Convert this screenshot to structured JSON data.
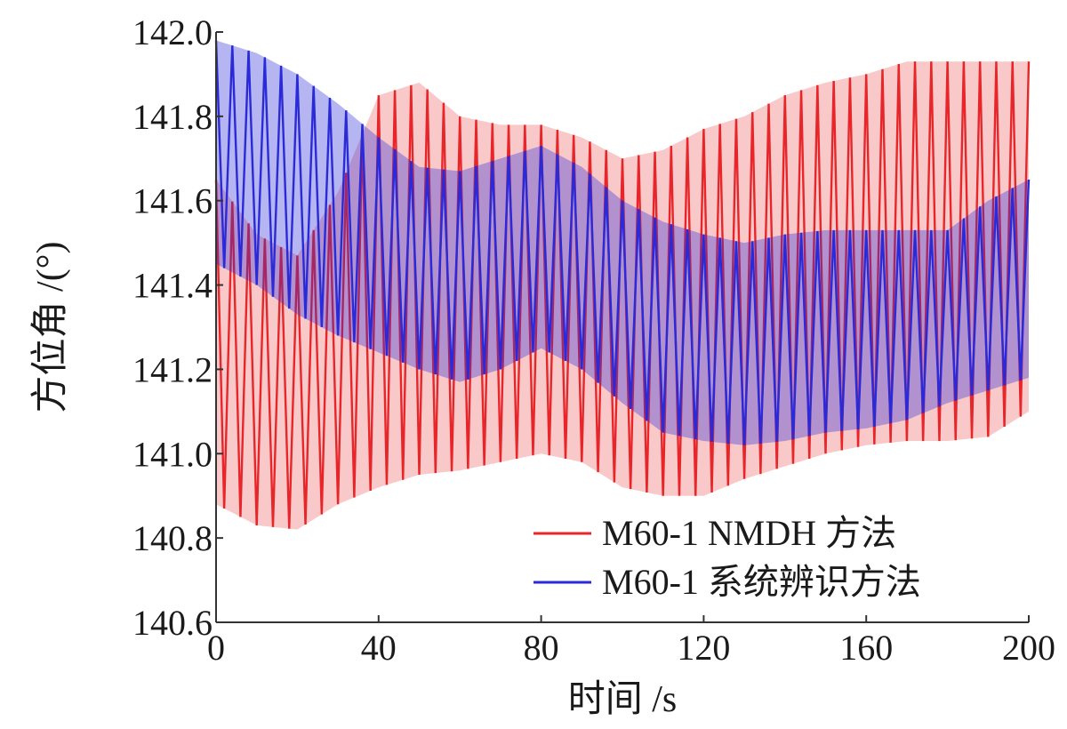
{
  "chart_data": {
    "type": "line",
    "xlabel": "时间 /s",
    "ylabel": "方位角 /(°)",
    "xlim": [
      0,
      200
    ],
    "ylim": [
      140.6,
      142.0
    ],
    "x_ticks": [
      "0",
      "40",
      "80",
      "120",
      "160",
      "200"
    ],
    "y_ticks": [
      "140.6",
      "140.8",
      "141.0",
      "141.2",
      "141.4",
      "141.6",
      "141.8",
      "142.0"
    ],
    "grid": false,
    "legend_position": "bottom-right",
    "oscillation_period_s": 4,
    "series": [
      {
        "name": "M60-1 NMDH 方法",
        "color": "#e8262a",
        "x": [
          0,
          10,
          20,
          30,
          40,
          50,
          60,
          70,
          80,
          90,
          100,
          110,
          120,
          130,
          140,
          150,
          160,
          170,
          180,
          190,
          200
        ],
        "upper": [
          141.65,
          141.52,
          141.47,
          141.62,
          141.85,
          141.88,
          141.8,
          141.78,
          141.78,
          141.75,
          141.7,
          141.72,
          141.77,
          141.8,
          141.85,
          141.88,
          141.9,
          141.93,
          141.93,
          141.93,
          141.93
        ],
        "lower": [
          140.88,
          140.83,
          140.82,
          140.88,
          140.92,
          140.95,
          140.96,
          140.98,
          141.0,
          140.98,
          140.92,
          140.9,
          140.9,
          140.94,
          140.97,
          141.0,
          141.02,
          141.03,
          141.03,
          141.04,
          141.1
        ],
        "mean": [
          141.3,
          141.2,
          141.17,
          141.25,
          141.4,
          141.45,
          141.38,
          141.4,
          141.45,
          141.38,
          141.3,
          141.3,
          141.32,
          141.35,
          141.4,
          141.42,
          141.45,
          141.47,
          141.48,
          141.5,
          141.5
        ]
      },
      {
        "name": "M60-1 系统辨识方法",
        "color": "#2a2ad8",
        "x": [
          0,
          10,
          20,
          30,
          40,
          50,
          60,
          70,
          80,
          90,
          100,
          110,
          120,
          130,
          140,
          150,
          160,
          170,
          180,
          190,
          200
        ],
        "upper": [
          141.98,
          141.95,
          141.9,
          141.83,
          141.75,
          141.68,
          141.67,
          141.7,
          141.73,
          141.68,
          141.6,
          141.55,
          141.52,
          141.5,
          141.52,
          141.53,
          141.53,
          141.53,
          141.53,
          141.6,
          141.65
        ],
        "lower": [
          141.45,
          141.4,
          141.33,
          141.28,
          141.24,
          141.2,
          141.17,
          141.2,
          141.25,
          141.2,
          141.12,
          141.05,
          141.03,
          141.02,
          141.03,
          141.05,
          141.06,
          141.08,
          141.12,
          141.15,
          141.18
        ],
        "mean": [
          141.73,
          141.67,
          141.6,
          141.55,
          141.48,
          141.42,
          141.4,
          141.44,
          141.48,
          141.42,
          141.35,
          141.3,
          141.27,
          141.27,
          141.28,
          141.3,
          141.3,
          141.31,
          141.33,
          141.37,
          141.42
        ]
      }
    ]
  }
}
